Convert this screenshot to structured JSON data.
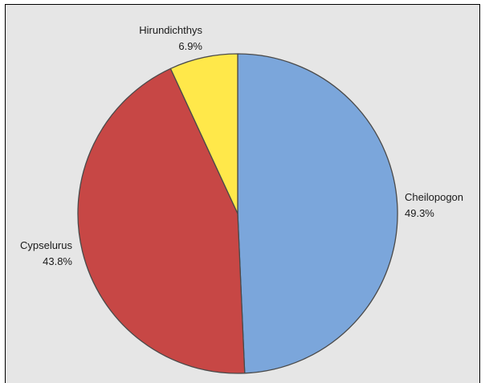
{
  "chart_data": {
    "type": "pie",
    "title": "",
    "start_angle": "12 o'clock, clockwise",
    "slices": [
      {
        "label": "Cheilopogon",
        "value": 49.3,
        "display": "49.3%",
        "color": "#7ba6db"
      },
      {
        "label": "Cypselurus",
        "value": 43.8,
        "display": "43.8%",
        "color": "#c74745"
      },
      {
        "label": "Hirundichthys",
        "value": 6.9,
        "display": "6.9%",
        "color": "#ffe84a"
      }
    ],
    "edge_color": "#4a4a4a",
    "background": "#e6e6e6",
    "legend": "none"
  }
}
